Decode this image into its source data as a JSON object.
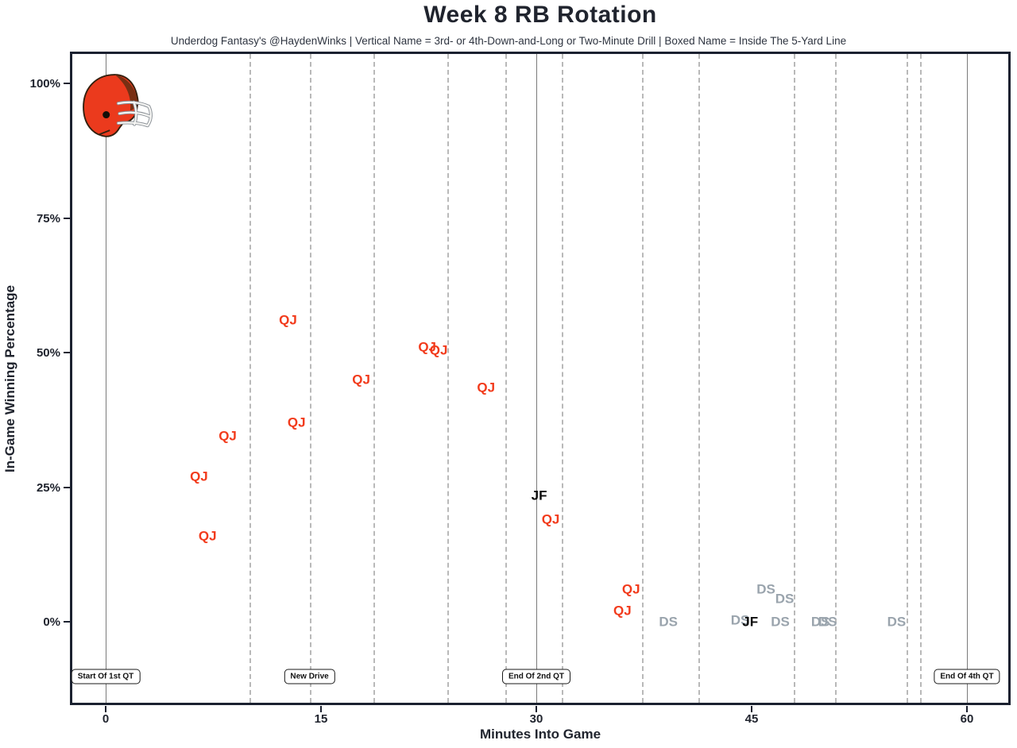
{
  "title": "Week 8 RB Rotation",
  "subtitle": "Underdog Fantasy's @HaydenWinks | Vertical Name = 3rd- or 4th-Down-and-Long or Two-Minute Drill | Boxed Name = Inside The 5-Yard Line",
  "chart_data": {
    "type": "scatter",
    "title": "Week 8 RB Rotation",
    "xlabel": "Minutes Into Game",
    "ylabel": "In-Game Winning Percentage",
    "xlim": [
      -2.5,
      63
    ],
    "ylim": [
      -15.5,
      106
    ],
    "grid": "vertical-dashed-drive-lines",
    "legend": "none",
    "team_logo": "cleveland-browns-helmet",
    "x_ticks": [
      {
        "label": "0",
        "min": 0
      },
      {
        "label": "15",
        "min": 15
      },
      {
        "label": "30",
        "min": 30
      },
      {
        "label": "45",
        "min": 45
      },
      {
        "label": "60",
        "min": 60
      }
    ],
    "y_ticks": [
      {
        "label": "0%",
        "pct": 0
      },
      {
        "label": "25%",
        "pct": 25
      },
      {
        "label": "50%",
        "pct": 50
      },
      {
        "label": "75%",
        "pct": 75
      },
      {
        "label": "100%",
        "pct": 100
      }
    ],
    "quarter_lines_min": [
      0,
      30,
      60
    ],
    "drive_lines_min": [
      10,
      14.2,
      18.65,
      23.8,
      27.85,
      31.75,
      37.35,
      41.3,
      47.95,
      50.8,
      55.8,
      56.75
    ],
    "colors": {
      "qj": "#f23b1c",
      "ds": "#9aa4ad",
      "jf": "#0b0b0b",
      "accent_border": "#1b2130"
    },
    "points": [
      {
        "label": "QJ",
        "player": "qj",
        "min": 6.5,
        "pct": 27
      },
      {
        "label": "QJ",
        "player": "qj",
        "min": 7.1,
        "pct": 16
      },
      {
        "label": "QJ",
        "player": "qj",
        "min": 8.5,
        "pct": 34.5
      },
      {
        "label": "QJ",
        "player": "qj",
        "min": 12.7,
        "pct": 56
      },
      {
        "label": "QJ",
        "player": "qj",
        "min": 13.3,
        "pct": 37
      },
      {
        "label": "QJ",
        "player": "qj",
        "min": 17.8,
        "pct": 45
      },
      {
        "label": "QJ",
        "player": "qj",
        "min": 22.4,
        "pct": 51
      },
      {
        "label": "QJ",
        "player": "qj",
        "min": 23.2,
        "pct": 50.5
      },
      {
        "label": "QJ",
        "player": "qj",
        "min": 26.5,
        "pct": 43.5
      },
      {
        "label": "JF",
        "player": "jf",
        "min": 30.2,
        "pct": 23.5
      },
      {
        "label": "QJ",
        "player": "qj",
        "min": 31.0,
        "pct": 19
      },
      {
        "label": "QJ",
        "player": "qj",
        "min": 36.0,
        "pct": 2
      },
      {
        "label": "QJ",
        "player": "qj",
        "min": 36.6,
        "pct": 6
      },
      {
        "label": "DS",
        "player": "ds",
        "min": 39.2,
        "pct": 0
      },
      {
        "label": "DS",
        "player": "ds",
        "min": 44.2,
        "pct": 0.3
      },
      {
        "label": "JF",
        "player": "jf",
        "min": 44.9,
        "pct": 0
      },
      {
        "label": "DS",
        "player": "ds",
        "min": 46.0,
        "pct": 6
      },
      {
        "label": "DS",
        "player": "ds",
        "min": 47.0,
        "pct": 0
      },
      {
        "label": "DS",
        "player": "ds",
        "min": 47.3,
        "pct": 4.3
      },
      {
        "label": "DS",
        "player": "ds",
        "min": 49.8,
        "pct": 0
      },
      {
        "label": "DS",
        "player": "ds",
        "min": 50.3,
        "pct": 0
      },
      {
        "label": "DS",
        "player": "ds",
        "min": 55.1,
        "pct": 0
      }
    ],
    "annotations": [
      {
        "label": "Start Of 1st QT",
        "min": 0
      },
      {
        "label": "New Drive",
        "min": 14.2
      },
      {
        "label": "End Of 2nd QT",
        "min": 30
      },
      {
        "label": "End Of 4th QT",
        "min": 60
      }
    ]
  }
}
